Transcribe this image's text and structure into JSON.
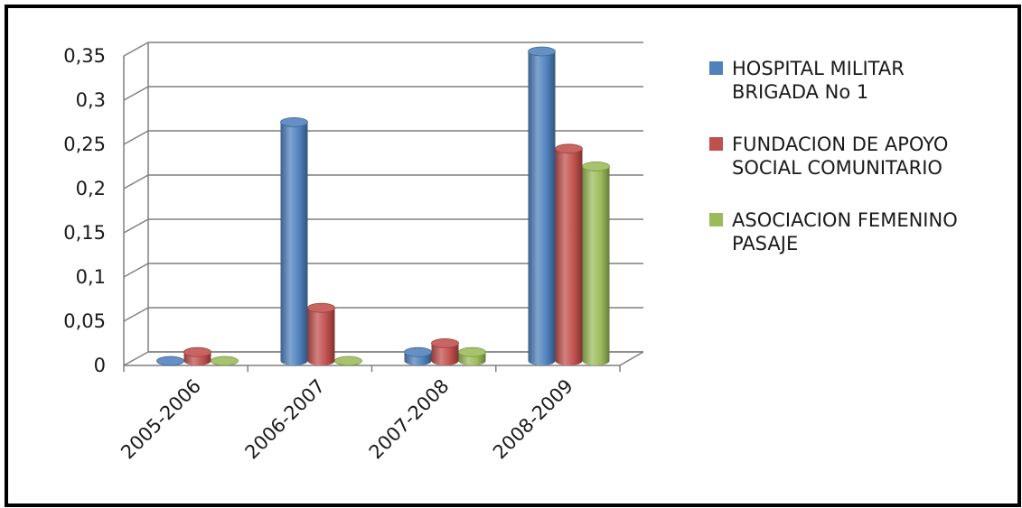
{
  "chart_data": {
    "type": "bar",
    "style": "3d-cylinder",
    "categories": [
      "2005-2006",
      "2006-2007",
      "2007-2008",
      "2008-2009"
    ],
    "series": [
      {
        "name": "HOSPITAL MILITAR BRIGADA No 1",
        "name_lines": [
          "HOSPITAL MILITAR",
          "BRIGADA No 1"
        ],
        "color": "#4f81bd",
        "values": [
          0,
          0.27,
          0.01,
          0.35
        ]
      },
      {
        "name": "FUNDACION DE APOYO SOCIAL COMUNITARIO",
        "name_lines": [
          "FUNDACION DE APOYO",
          "SOCIAL COMUNITARIO"
        ],
        "color": "#c0504d",
        "values": [
          0.01,
          0.06,
          0.02,
          0.24
        ]
      },
      {
        "name": "ASOCIACION FEMENINO PASAJE",
        "name_lines": [
          "ASOCIACION FEMENINO",
          "PASAJE"
        ],
        "color": "#9bbb59",
        "values": [
          0,
          0,
          0.01,
          0.22
        ]
      }
    ],
    "y_ticks": [
      "0",
      "0,05",
      "0,1",
      "0,15",
      "0,2",
      "0,25",
      "0,3",
      "0,35"
    ],
    "ylim": [
      0,
      0.35
    ],
    "grid": true,
    "legend_position": "right",
    "title": "",
    "xlabel": "",
    "ylabel": ""
  }
}
